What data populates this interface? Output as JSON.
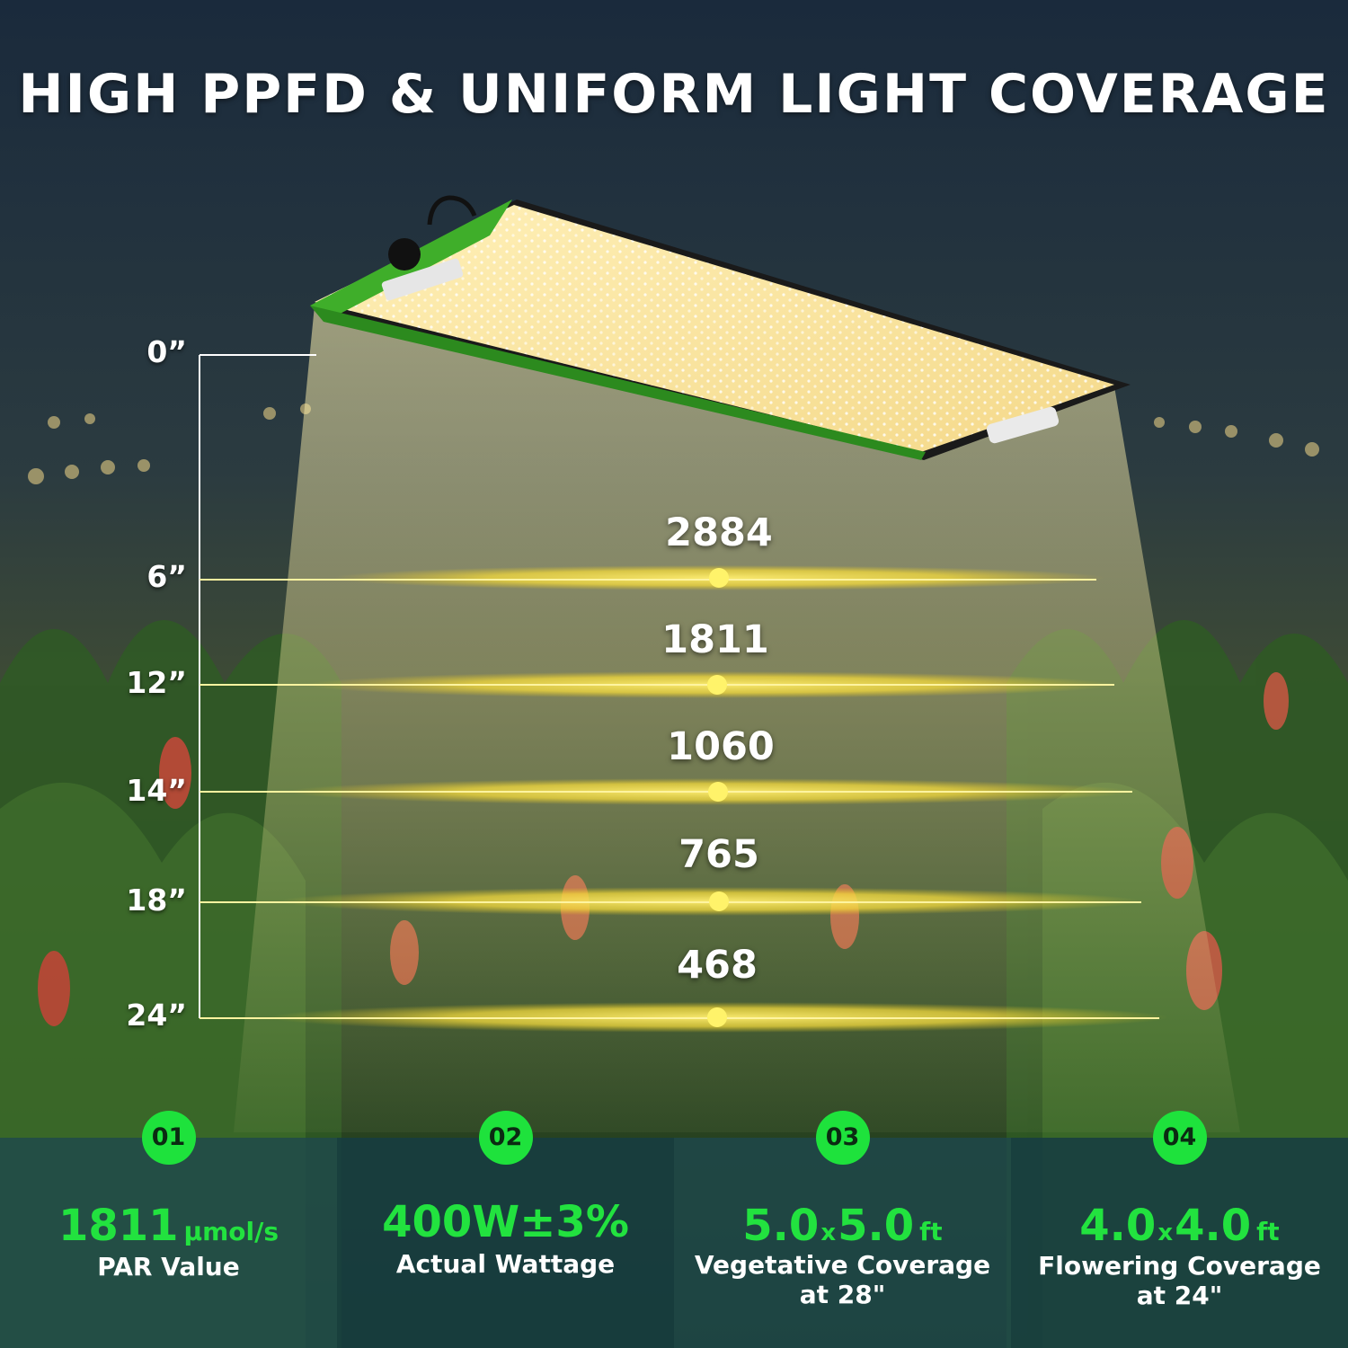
{
  "title": "HIGH PPFD & UNIFORM LIGHT COVERAGE",
  "colors": {
    "accent_green": "#22e23f",
    "light_yellow": "#ffe066",
    "light_panel": "#f7e7a8",
    "fixture_green": "#3fae2a"
  },
  "heights": [
    "0”",
    "6”",
    "12”",
    "14”",
    "18”",
    "24”"
  ],
  "ppfd_levels": [
    {
      "height": "6”",
      "value": "2884"
    },
    {
      "height": "12”",
      "value": "1811"
    },
    {
      "height": "14”",
      "value": "1060"
    },
    {
      "height": "18”",
      "value": "765"
    },
    {
      "height": "24”",
      "value": "468"
    }
  ],
  "stats": [
    {
      "badge": "01",
      "value": "1811",
      "unit": "μmol/s",
      "caption1": "PAR Value",
      "caption2": ""
    },
    {
      "badge": "02",
      "value": "400W±3%",
      "unit": "",
      "caption1": "Actual Wattage",
      "caption2": ""
    },
    {
      "badge": "03",
      "value_a": "5.0",
      "times": "x",
      "value_b": "5.0",
      "unit": "ft",
      "caption1": "Vegetative Coverage",
      "caption2": "at 28\""
    },
    {
      "badge": "04",
      "value_a": "4.0",
      "times": "x",
      "value_b": "4.0",
      "unit": "ft",
      "caption1": "Flowering Coverage",
      "caption2": "at 24\""
    }
  ]
}
